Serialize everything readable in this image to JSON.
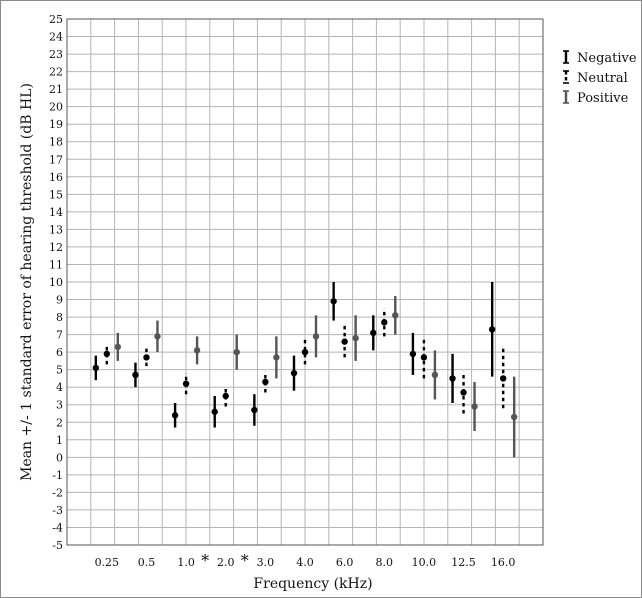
{
  "chart_data": {
    "type": "scatter",
    "subtype": "error-bar",
    "title": "",
    "xlabel": "Frequency (kHz)",
    "ylabel": "Mean +/- 1 standard error of hearing threshold (dB HL)",
    "ylim": [
      -5,
      25
    ],
    "y_ticks": [
      -5,
      -4,
      -3,
      -2,
      -1,
      0,
      1,
      2,
      3,
      4,
      5,
      6,
      7,
      8,
      9,
      10,
      11,
      12,
      13,
      14,
      15,
      16,
      17,
      18,
      19,
      20,
      21,
      22,
      23,
      24,
      25
    ],
    "grid": true,
    "legend_position": "right",
    "categories": [
      "0.25",
      "0.5",
      "1.0",
      "2.0",
      "3.0",
      "4.0",
      "6.0",
      "8.0",
      "10.0",
      "12.5",
      "16.0"
    ],
    "significant_categories": [
      "1.0",
      "2.0"
    ],
    "significance_marker": "*",
    "series": [
      {
        "name": "Negative",
        "color": "#000000",
        "dash": "solid",
        "mean": [
          5.1,
          4.7,
          2.4,
          2.6,
          2.7,
          4.8,
          8.9,
          7.1,
          5.9,
          4.5,
          7.3
        ],
        "low": [
          4.4,
          4.0,
          1.7,
          1.7,
          1.8,
          3.8,
          7.8,
          6.1,
          4.7,
          3.1,
          4.6
        ],
        "high": [
          5.8,
          5.4,
          3.1,
          3.5,
          3.6,
          5.8,
          10.0,
          8.1,
          7.1,
          5.9,
          10.0
        ]
      },
      {
        "name": "Neutral",
        "color": "#000000",
        "dash": "dashed",
        "mean": [
          5.9,
          5.7,
          4.2,
          3.5,
          4.3,
          6.0,
          6.6,
          7.7,
          5.7,
          3.7,
          4.5
        ],
        "low": [
          5.3,
          5.2,
          3.6,
          2.9,
          3.7,
          5.3,
          5.7,
          6.9,
          4.5,
          2.5,
          2.8
        ],
        "high": [
          6.5,
          6.2,
          4.8,
          4.1,
          4.9,
          6.7,
          7.5,
          8.5,
          6.9,
          4.9,
          6.2
        ]
      },
      {
        "name": "Positive",
        "color": "#555555",
        "dash": "solid",
        "mean": [
          6.3,
          6.9,
          6.1,
          6.0,
          5.7,
          6.9,
          6.8,
          8.1,
          4.7,
          2.9,
          2.3
        ],
        "low": [
          5.5,
          6.0,
          5.3,
          5.0,
          4.5,
          5.7,
          5.5,
          7.0,
          3.3,
          1.5,
          0.0
        ],
        "high": [
          7.1,
          7.8,
          6.9,
          7.0,
          6.9,
          8.1,
          8.1,
          9.2,
          6.1,
          4.3,
          4.6
        ]
      }
    ]
  }
}
